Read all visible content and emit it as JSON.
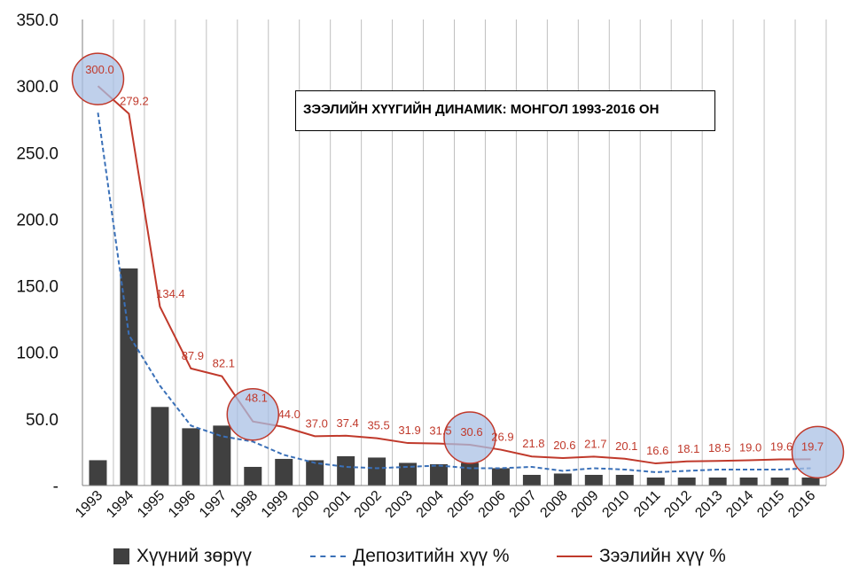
{
  "chart_data": {
    "type": "bar",
    "title": "ЗЭЭЛИЙН ХҮҮГИЙН ДИНАМИК: МОНГОЛ 1993-2016 ОН",
    "categories": [
      "1993",
      "1994",
      "1995",
      "1996",
      "1997",
      "1998",
      "1999",
      "2000",
      "2001",
      "2002",
      "2003",
      "2004",
      "2005",
      "2006",
      "2007",
      "2008",
      "2009",
      "2010",
      "2011",
      "2012",
      "2013",
      "2014",
      "2015",
      "2016"
    ],
    "y_ticks": [
      "-",
      "50.0",
      "100.0",
      "150.0",
      "200.0",
      "250.0",
      "300.0",
      "350.0"
    ],
    "ylim": [
      0,
      350
    ],
    "grid": "vertical",
    "legend_position": "bottom",
    "series": [
      {
        "name": "Хүүний зөрүү",
        "type": "bar",
        "color": "#404040",
        "values": [
          19,
          163,
          59,
          43,
          45,
          14,
          20,
          19,
          22,
          21,
          17,
          16,
          17,
          13,
          8,
          9,
          8,
          8,
          6,
          6,
          6,
          6,
          6,
          6
        ]
      },
      {
        "name": "Депозитийн хүү %",
        "type": "line",
        "style": "dashed",
        "color": "#3a70b8",
        "values": [
          280,
          113,
          75,
          45,
          37,
          33,
          23,
          17,
          14,
          13,
          14,
          15,
          13,
          13,
          14,
          11,
          13,
          12,
          10,
          11,
          12,
          12,
          12,
          13
        ]
      },
      {
        "name": "Зээлийн хүү %",
        "type": "line",
        "style": "solid",
        "color": "#c0392b",
        "values": [
          300.0,
          279.2,
          134.4,
          87.9,
          82.1,
          48.1,
          44.0,
          37.0,
          37.4,
          35.5,
          31.9,
          31.5,
          30.6,
          26.9,
          21.8,
          20.6,
          21.7,
          20.1,
          16.6,
          18.1,
          18.5,
          19.0,
          19.6,
          19.7
        ],
        "labels": [
          "300.0",
          "279.2",
          "134.4",
          "87.9",
          "82.1",
          "48.1",
          "44.0",
          "37.0",
          "37.4",
          "35.5",
          "31.9",
          "31.5",
          "30.6",
          "26.9",
          "21.8",
          "20.6",
          "21.7",
          "20.1",
          "16.6",
          "18.1",
          "18.5",
          "19.0",
          "19.6",
          "19.7"
        ]
      }
    ],
    "highlighted_years": [
      "1993",
      "1998",
      "2005",
      "2016"
    ],
    "highlight_color": "#a9c0e4"
  },
  "legend": {
    "bar_label": "Хүүний зөрүү",
    "deposit_label": "Депозитийн хүү %",
    "loan_label": "Зээлийн хүү %"
  }
}
